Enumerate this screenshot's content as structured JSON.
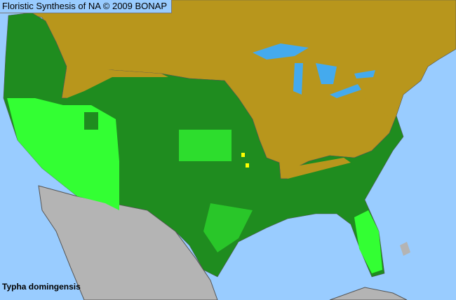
{
  "header": {
    "title": "Floristic Synthesis of NA © 2009 BONAP"
  },
  "map": {
    "species": "Typha domingensis",
    "colors": {
      "water": "#99ccff",
      "not_present_olive": "#b8961c",
      "present_dark_green": "#1f8c1f",
      "present_light_green": "#33ff33",
      "yellow": "#ffff00",
      "outside_gray": "#b4b4b4",
      "border": "#555555"
    }
  }
}
